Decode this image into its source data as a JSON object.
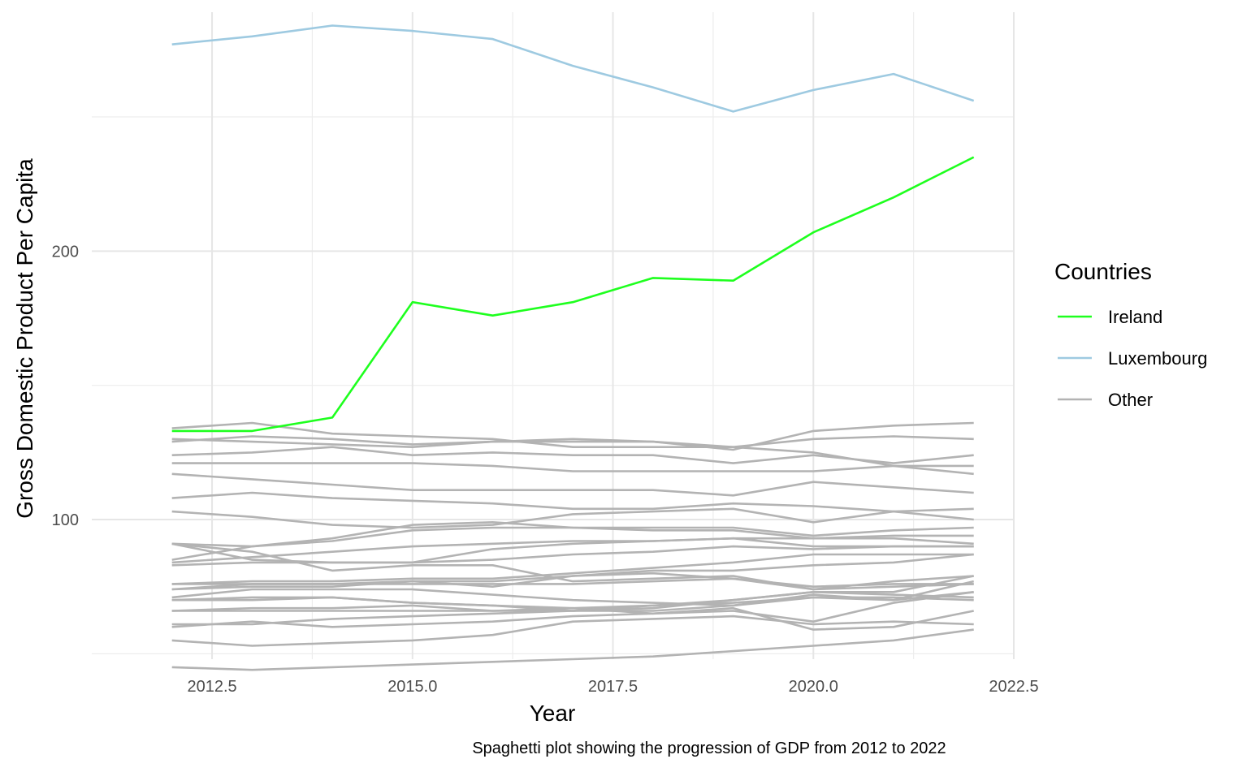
{
  "chart_data": {
    "type": "line",
    "title": "",
    "xlabel": "Year",
    "ylabel": "Gross Domestic Product Per Capita",
    "caption": "Spaghetti plot showing the progression of GDP from 2012 to 2022",
    "xlim": [
      2011.0,
      2022.5
    ],
    "ylim": [
      48,
      289
    ],
    "x_ticks": [
      2012.5,
      2015.0,
      2017.5,
      2020.0,
      2022.5
    ],
    "x_tick_labels": [
      "2012.5",
      "2015.0",
      "2017.5",
      "2020.0",
      "2022.5"
    ],
    "y_ticks": [
      100,
      200
    ],
    "y_tick_labels": [
      "100",
      "200"
    ],
    "y_minor_ticks": [
      50,
      150,
      250
    ],
    "grid": true,
    "legend": {
      "title": "Countries",
      "position": "right",
      "entries": [
        {
          "label": "Ireland",
          "color": "#1EFF1E"
        },
        {
          "label": "Luxembourg",
          "color": "#9ECAE1"
        },
        {
          "label": "Other",
          "color": "#B3B3B3"
        }
      ]
    },
    "x": [
      2012,
      2013,
      2014,
      2015,
      2016,
      2017,
      2018,
      2019,
      2020,
      2021,
      2022
    ],
    "series": [
      {
        "name": "Luxembourg",
        "group": "Luxembourg",
        "values": [
          277,
          280,
          284,
          282,
          279,
          269,
          261,
          252,
          260,
          266,
          256
        ]
      },
      {
        "group": "Other",
        "values": [
          134,
          136,
          132,
          131,
          130,
          127,
          127,
          127,
          125,
          120,
          117
        ]
      },
      {
        "group": "Other",
        "values": [
          130,
          129,
          128,
          127,
          129,
          130,
          129,
          126,
          133,
          135,
          136
        ]
      },
      {
        "group": "Other",
        "values": [
          129,
          131,
          130,
          128,
          129,
          129,
          129,
          127,
          130,
          131,
          130
        ]
      },
      {
        "group": "Other",
        "values": [
          124,
          125,
          127,
          124,
          125,
          124,
          124,
          121,
          124,
          121,
          124
        ]
      },
      {
        "group": "Other",
        "values": [
          121,
          121,
          121,
          121,
          120,
          118,
          118,
          118,
          118,
          120,
          120
        ]
      },
      {
        "group": "Other",
        "values": [
          117,
          115,
          113,
          111,
          111,
          111,
          111,
          109,
          114,
          112,
          110
        ]
      },
      {
        "group": "Other",
        "values": [
          108,
          110,
          108,
          107,
          106,
          104,
          104,
          106,
          105,
          103,
          100
        ]
      },
      {
        "group": "Other",
        "values": [
          103,
          101,
          98,
          97,
          98,
          102,
          103,
          104,
          99,
          103,
          104
        ]
      },
      {
        "group": "Other",
        "values": [
          91,
          90,
          92,
          96,
          97,
          97,
          97,
          97,
          94,
          96,
          97
        ]
      },
      {
        "group": "Other",
        "values": [
          85,
          90,
          93,
          98,
          99,
          97,
          96,
          96,
          93,
          94,
          94
        ]
      },
      {
        "group": "Other",
        "values": [
          91,
          85,
          84,
          84,
          89,
          91,
          92,
          93,
          93,
          93,
          91
        ]
      },
      {
        "group": "Other",
        "values": [
          84,
          86,
          88,
          90,
          91,
          92,
          92,
          93,
          90,
          90,
          90
        ]
      },
      {
        "group": "Other",
        "values": [
          83,
          84,
          84,
          84,
          85,
          87,
          88,
          90,
          89,
          90,
          90
        ]
      },
      {
        "group": "Other",
        "values": [
          76,
          77,
          77,
          78,
          78,
          80,
          82,
          84,
          87,
          87,
          87
        ]
      },
      {
        "group": "Other",
        "values": [
          76,
          76,
          76,
          77,
          77,
          79,
          81,
          81,
          83,
          84,
          87
        ]
      },
      {
        "group": "Other",
        "values": [
          91,
          88,
          81,
          83,
          83,
          77,
          78,
          79,
          74,
          75,
          76
        ]
      },
      {
        "group": "Other",
        "values": [
          74,
          76,
          76,
          76,
          76,
          76,
          77,
          78,
          75,
          76,
          76
        ]
      },
      {
        "group": "Other",
        "values": [
          74,
          75,
          75,
          77,
          75,
          79,
          80,
          78,
          74,
          77,
          79
        ]
      },
      {
        "group": "Other",
        "values": [
          70,
          71,
          71,
          69,
          68,
          67,
          68,
          70,
          73,
          73,
          79
        ]
      },
      {
        "group": "Other",
        "values": [
          70,
          70,
          71,
          69,
          68,
          66,
          67,
          70,
          73,
          72,
          71
        ]
      },
      {
        "group": "Other",
        "values": [
          71,
          74,
          74,
          74,
          72,
          70,
          69,
          68,
          72,
          70,
          73
        ]
      },
      {
        "group": "Other",
        "values": [
          66,
          67,
          67,
          68,
          66,
          66,
          66,
          68,
          71,
          70,
          77
        ]
      },
      {
        "group": "Other",
        "values": [
          66,
          66,
          66,
          66,
          66,
          67,
          65,
          66,
          62,
          69,
          73
        ]
      },
      {
        "group": "Other",
        "values": [
          61,
          61,
          63,
          64,
          65,
          66,
          68,
          69,
          71,
          71,
          70
        ]
      },
      {
        "group": "Other",
        "values": [
          60,
          62,
          60,
          61,
          62,
          64,
          65,
          67,
          59,
          60,
          66
        ]
      },
      {
        "group": "Other",
        "values": [
          55,
          53,
          54,
          55,
          57,
          62,
          63,
          64,
          61,
          62,
          61
        ]
      },
      {
        "group": "Other",
        "values": [
          45,
          44,
          45,
          46,
          47,
          48,
          49,
          51,
          53,
          55,
          59
        ]
      },
      {
        "name": "Ireland",
        "group": "Ireland",
        "values": [
          133,
          133,
          138,
          181,
          176,
          181,
          190,
          189,
          207,
          220,
          235
        ]
      }
    ]
  }
}
